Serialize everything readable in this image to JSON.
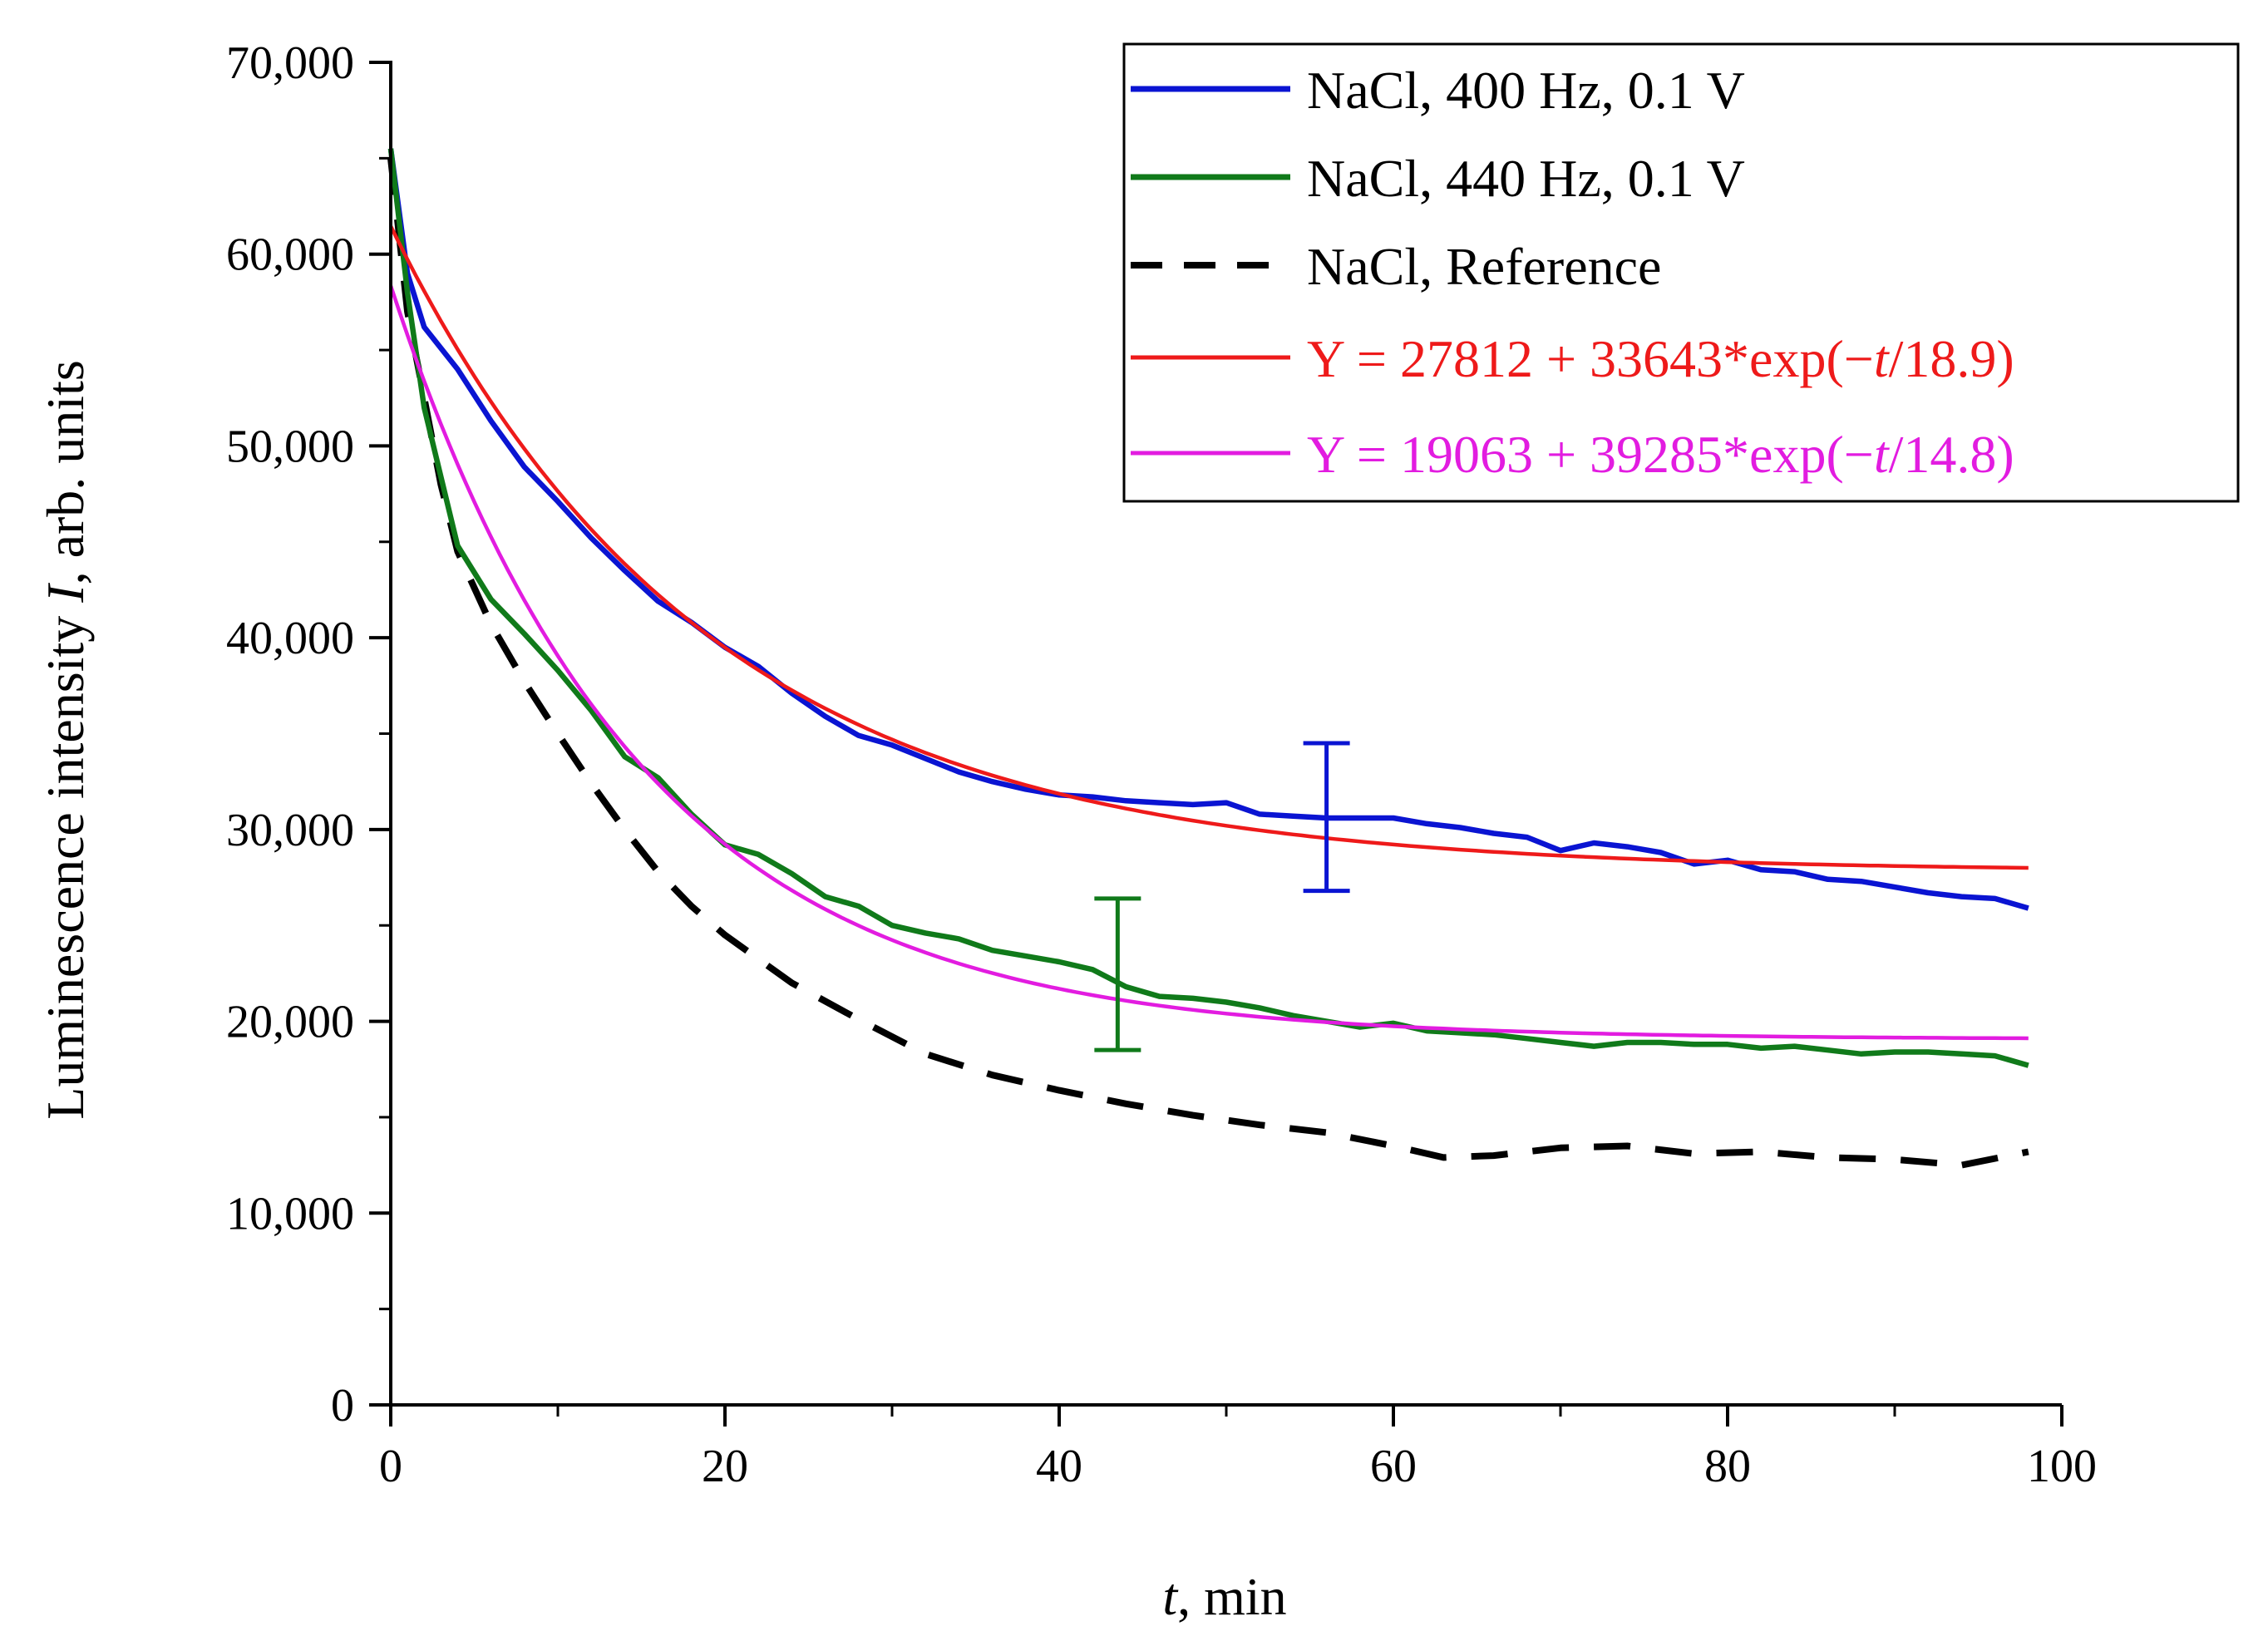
{
  "chart_data": {
    "type": "line",
    "title": "",
    "xlabel_italic": "t",
    "xlabel_rest": ", min",
    "ylabel_pre": "Luminescence intensity ",
    "ylabel_italic": "I",
    "ylabel_post": ", arb. units",
    "xlim": [
      0,
      100
    ],
    "ylim": [
      0,
      70000
    ],
    "x_ticks": [
      0,
      20,
      40,
      60,
      80,
      100
    ],
    "x_tick_labels": [
      "0",
      "20",
      "40",
      "60",
      "80",
      "100"
    ],
    "y_ticks": [
      0,
      10000,
      20000,
      30000,
      40000,
      50000,
      60000,
      70000
    ],
    "y_tick_labels": [
      "0",
      "10,000",
      "20,000",
      "30,000",
      "40,000",
      "50,000",
      "60,000",
      "70,000"
    ],
    "legend_position": "top-right",
    "series": [
      {
        "name": "NaCl, 400 Hz, 0.1 V",
        "color": "#0a14d2",
        "style": "solid",
        "x": [
          0,
          1,
          2,
          4,
          6,
          8,
          10,
          12,
          14,
          16,
          18,
          20,
          22,
          24,
          26,
          28,
          30,
          32,
          34,
          36,
          38,
          40,
          42,
          44,
          46,
          48,
          50,
          52,
          54,
          56,
          58,
          60,
          62,
          64,
          66,
          68,
          70,
          72,
          74,
          76,
          78,
          80,
          82,
          84,
          86,
          88,
          90,
          92,
          94,
          96,
          98
        ],
        "values": [
          65500,
          59000,
          56200,
          54000,
          51300,
          48900,
          47100,
          45200,
          43500,
          41900,
          40800,
          39500,
          38500,
          37100,
          35900,
          34900,
          34400,
          33700,
          33000,
          32500,
          32100,
          31800,
          31700,
          31500,
          31400,
          31300,
          31400,
          30800,
          30700,
          30600,
          30600,
          30600,
          30300,
          30100,
          29800,
          29600,
          28900,
          29300,
          29100,
          28800,
          28200,
          28400,
          27900,
          27800,
          27400,
          27300,
          27000,
          26700,
          26500,
          26400,
          25900
        ]
      },
      {
        "name": "NaCl, 440 Hz, 0.1 V",
        "color": "#107a1a",
        "style": "solid",
        "x": [
          0,
          1,
          2,
          4,
          6,
          8,
          10,
          12,
          14,
          16,
          18,
          20,
          22,
          24,
          26,
          28,
          30,
          32,
          34,
          36,
          38,
          40,
          42,
          44,
          46,
          48,
          50,
          52,
          54,
          56,
          58,
          60,
          62,
          64,
          66,
          68,
          70,
          72,
          74,
          76,
          78,
          80,
          82,
          84,
          86,
          88,
          90,
          92,
          94,
          96,
          98
        ],
        "values": [
          65500,
          58000,
          52000,
          44800,
          42000,
          40200,
          38300,
          36200,
          33800,
          32700,
          30800,
          29200,
          28700,
          27700,
          26500,
          26000,
          25000,
          24600,
          24300,
          23700,
          23400,
          23100,
          22700,
          21800,
          21300,
          21200,
          21000,
          20700,
          20300,
          20000,
          19700,
          19900,
          19500,
          19400,
          19300,
          19100,
          18900,
          18700,
          18900,
          18900,
          18800,
          18800,
          18600,
          18700,
          18500,
          18300,
          18400,
          18400,
          18300,
          18200,
          17700
        ]
      },
      {
        "name": "NaCl, Reference",
        "color": "#000000",
        "style": "dashed",
        "x": [
          0,
          1,
          2,
          3,
          4,
          6,
          8,
          10,
          12,
          14,
          16,
          18,
          20,
          24,
          28,
          32,
          36,
          40,
          44,
          48,
          52,
          56,
          60,
          63,
          66,
          70,
          74,
          78,
          82,
          86,
          90,
          94,
          98
        ],
        "values": [
          65000,
          57000,
          52500,
          48000,
          44500,
          40700,
          37700,
          35000,
          32400,
          30000,
          27800,
          26000,
          24500,
          22000,
          20100,
          18300,
          17200,
          16400,
          15700,
          15100,
          14600,
          14200,
          13500,
          12900,
          13000,
          13400,
          13500,
          13100,
          13200,
          12900,
          12800,
          12500,
          13200
        ]
      },
      {
        "name": "Y = 27812 + 33643*exp(−t/18.9)",
        "color": "#ee1a1a",
        "style": "solid",
        "fit": {
          "y0": 27812,
          "a": 33643,
          "tau": 18.9
        },
        "x_range": [
          0,
          98
        ]
      },
      {
        "name": "Y = 19063 + 39285*exp(−t/14.8)",
        "color": "#e21ce0",
        "style": "solid",
        "fit": {
          "y0": 19063,
          "a": 39285,
          "tau": 14.8
        },
        "x_range": [
          0,
          98
        ]
      }
    ],
    "error_bars": [
      {
        "series": "NaCl, 400 Hz, 0.1 V",
        "x": 56,
        "low": 26800,
        "high": 34500,
        "color": "#0a14d2"
      },
      {
        "series": "NaCl, 440 Hz, 0.1 V",
        "x": 43.5,
        "low": 18500,
        "high": 26400,
        "color": "#107a1a"
      }
    ],
    "legend": [
      {
        "label": "NaCl, 400 Hz, 0.1 V",
        "color": "#0a14d2",
        "text_color": "#000000",
        "style": "solid"
      },
      {
        "label": "NaCl, 440 Hz, 0.1 V",
        "color": "#107a1a",
        "text_color": "#000000",
        "style": "solid"
      },
      {
        "label": "NaCl, Reference",
        "color": "#000000",
        "text_color": "#000000",
        "style": "dashed"
      },
      {
        "label_pre": "Y = 27812 + 33643*exp(−",
        "label_it": "t",
        "label_post": "/18.9)",
        "color": "#ee1a1a",
        "text_color": "#ee1a1a",
        "style": "solid"
      },
      {
        "label_pre": "Y = 19063 + 39285*exp(−",
        "label_it": "t",
        "label_post": "/14.8)",
        "color": "#e21ce0",
        "text_color": "#e21ce0",
        "style": "solid"
      }
    ]
  }
}
